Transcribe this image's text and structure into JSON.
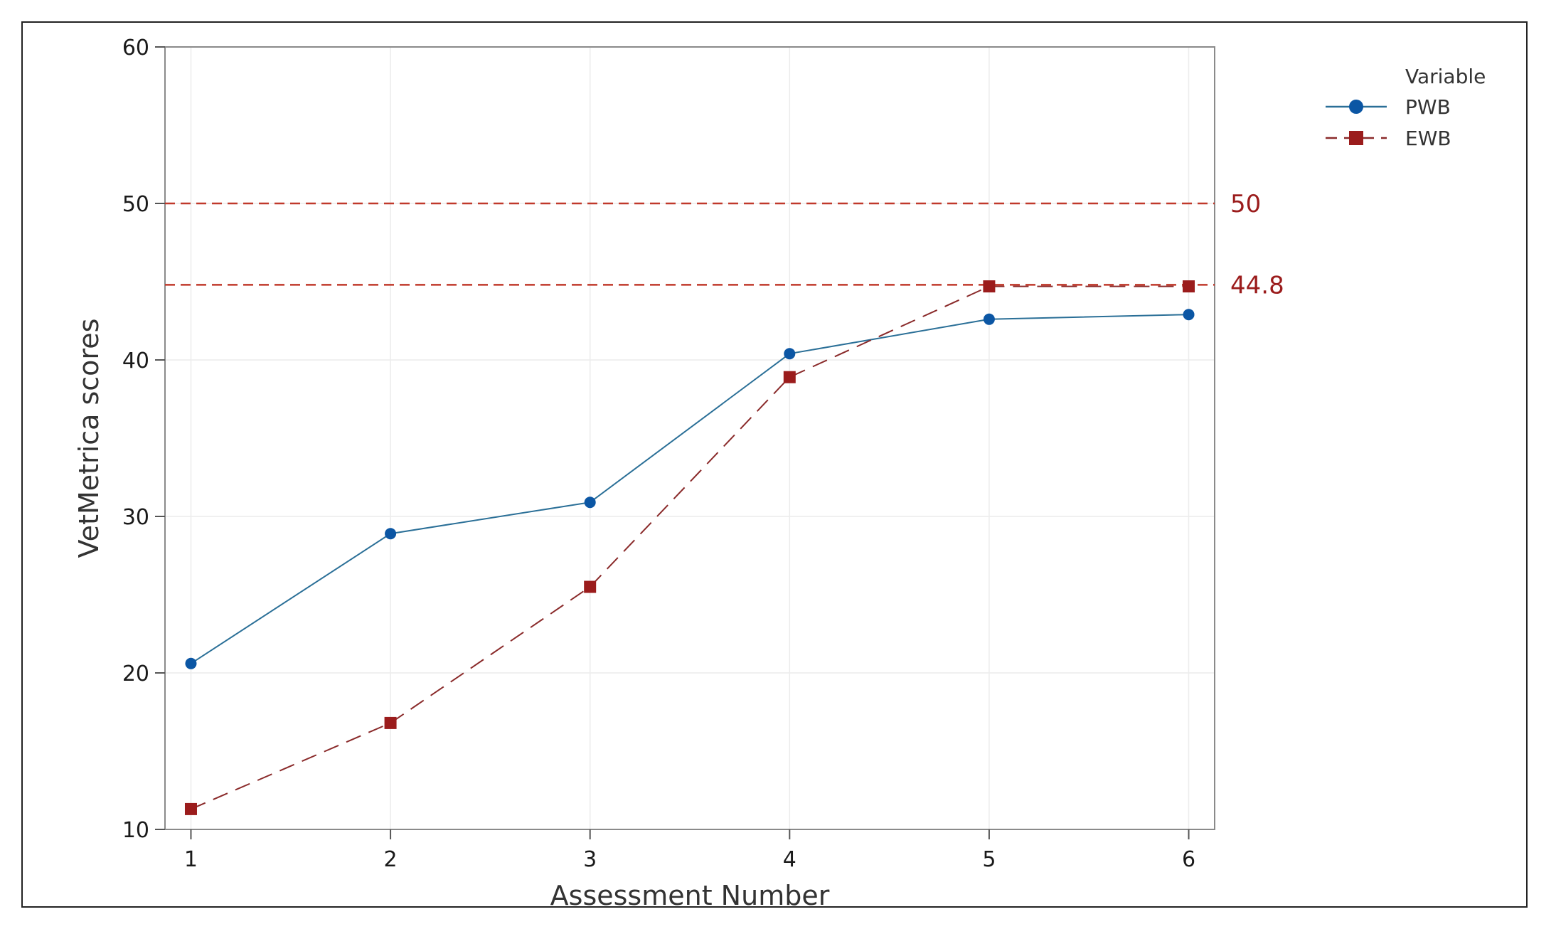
{
  "chart_data": {
    "type": "line",
    "xlabel": "Assessment Number",
    "ylabel": "VetMetrica scores",
    "x": [
      1,
      2,
      3,
      4,
      5,
      6
    ],
    "xlim": [
      0.87,
      6.13
    ],
    "ylim": [
      10,
      60
    ],
    "yticks": [
      10,
      20,
      30,
      40,
      50,
      60
    ],
    "series": [
      {
        "name": "PWB",
        "values": [
          20.6,
          28.9,
          30.9,
          40.4,
          42.6,
          42.9
        ],
        "color": "#0b56a4",
        "line_color": "#2a6f97",
        "marker": "circle",
        "dash": "solid"
      },
      {
        "name": "EWB",
        "values": [
          11.3,
          16.8,
          25.5,
          38.9,
          44.7,
          44.7
        ],
        "color": "#9b1c1c",
        "line_color": "#8a2a2a",
        "marker": "square",
        "dash": "dashed"
      }
    ],
    "reference_lines": [
      {
        "value": 50,
        "label": "50",
        "color": "#c0392b"
      },
      {
        "value": 44.8,
        "label": "44.8",
        "color": "#c0392b"
      }
    ],
    "legend": {
      "title": "Variable",
      "position": "right-top"
    },
    "grid": true
  }
}
